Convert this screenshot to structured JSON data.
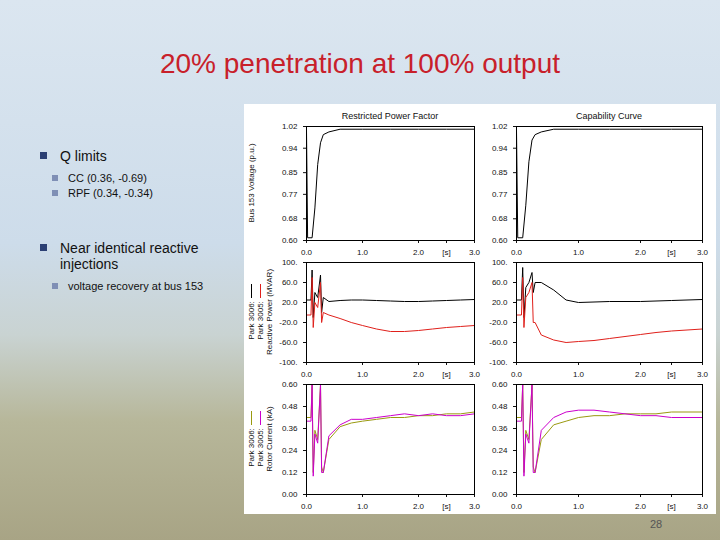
{
  "slide": {
    "title": "20% penetration at 100% output",
    "bullets": [
      {
        "text": "Q limits",
        "sub": [
          "CC (0.36, -0.69)",
          "RPF (0.34, -0.34)"
        ]
      },
      {
        "text": "Near identical reactive injections",
        "sub": [
          "voltage recovery at bus 153"
        ]
      }
    ],
    "page_number": "28"
  },
  "chart_data": [
    {
      "type": "line",
      "title": "Restricted Power Factor",
      "ylabel": "Bus 153 Voltage (p.u.)",
      "grid": false,
      "x": [
        0,
        0.02,
        0.1,
        0.15,
        0.2,
        0.25,
        0.3,
        0.4,
        0.6,
        1,
        1.5,
        2,
        2.5,
        3
      ],
      "series": [
        {
          "color": "#000000",
          "values": [
            1.01,
            0.61,
            0.61,
            0.72,
            0.88,
            0.96,
            0.99,
            1.0,
            1.01,
            1.01,
            1.01,
            1.01,
            1.01,
            1.01
          ]
        }
      ],
      "xlim": [
        0,
        3
      ],
      "xticks": [
        {
          "value": 0,
          "label": "0.0"
        },
        {
          "value": 1,
          "label": "1.0"
        },
        {
          "value": 2,
          "label": "2.0"
        },
        {
          "value": 2.5,
          "label": "[s]"
        },
        {
          "value": 3,
          "label": "3.0"
        }
      ],
      "ylim": [
        0.6,
        1.02
      ],
      "yticks": [
        1.02,
        0.94,
        0.85,
        0.77,
        0.68,
        {
          "value": 0.6,
          "label": "0.60"
        }
      ]
    },
    {
      "type": "line",
      "title": "Capability Curve",
      "grid": false,
      "x": [
        0,
        0.02,
        0.1,
        0.15,
        0.2,
        0.25,
        0.3,
        0.4,
        0.6,
        1,
        1.5,
        2,
        2.5,
        3
      ],
      "series": [
        {
          "color": "#000000",
          "values": [
            1.01,
            0.61,
            0.61,
            0.73,
            0.89,
            0.97,
            0.99,
            1.0,
            1.01,
            1.01,
            1.01,
            1.01,
            1.01,
            1.01
          ]
        }
      ],
      "xlim": [
        0,
        3
      ],
      "xticks": [
        {
          "value": 0,
          "label": "0.0"
        },
        {
          "value": 1,
          "label": "1.0"
        },
        {
          "value": 2,
          "label": "2.0"
        },
        {
          "value": 2.5,
          "label": "[s]"
        },
        {
          "value": 3,
          "label": "3.0"
        }
      ],
      "ylim": [
        0.6,
        1.02
      ],
      "yticks": [
        1.02,
        0.94,
        0.85,
        0.77,
        0.68,
        {
          "value": 0.6,
          "label": "0.60"
        }
      ]
    },
    {
      "type": "line",
      "ylabel": "Reactive Power (MVAR)",
      "grid": false,
      "x": [
        0,
        0.08,
        0.1,
        0.12,
        0.15,
        0.2,
        0.25,
        0.27,
        0.3,
        0.4,
        0.6,
        0.8,
        1.0,
        1.25,
        1.5,
        1.75,
        2.0,
        2.25,
        2.5,
        2.75,
        3.0
      ],
      "series": [
        {
          "name": "Park 3006:",
          "color": "#000000",
          "values": [
            25,
            25,
            85,
            -10,
            40,
            30,
            75,
            0,
            30,
            22,
            24,
            25,
            25,
            24,
            23,
            22,
            22,
            23,
            24,
            25,
            26
          ]
        },
        {
          "name": "Park 3005:",
          "color": "#e0201b",
          "values": [
            -5,
            -5,
            70,
            -30,
            20,
            10,
            60,
            -20,
            0,
            -5,
            -12,
            -20,
            -26,
            -33,
            -38,
            -38,
            -36,
            -33,
            -30,
            -28,
            -26
          ]
        }
      ],
      "xlim": [
        0,
        3
      ],
      "xticks": [
        {
          "value": 0,
          "label": "0.0"
        },
        {
          "value": 1,
          "label": "1.0"
        },
        {
          "value": 2,
          "label": "2.0"
        },
        {
          "value": 2.5,
          "label": "[s]"
        },
        {
          "value": 3,
          "label": "3.0"
        }
      ],
      "ylim": [
        -100,
        100
      ],
      "yticks": [
        {
          "value": 100,
          "label": "100."
        },
        {
          "value": 60,
          "label": "60.0"
        },
        {
          "value": 20,
          "label": "20.0"
        },
        {
          "value": -20,
          "label": "-20.0"
        },
        {
          "value": -60,
          "label": "-60.0"
        },
        {
          "value": -100,
          "label": "-100."
        }
      ]
    },
    {
      "type": "line",
      "grid": false,
      "x": [
        0,
        0.08,
        0.1,
        0.12,
        0.15,
        0.2,
        0.25,
        0.27,
        0.3,
        0.4,
        0.6,
        0.8,
        1.0,
        1.25,
        1.5,
        1.75,
        2.0,
        2.25,
        2.5,
        2.75,
        3.0
      ],
      "series": [
        {
          "color": "#000000",
          "values": [
            25,
            25,
            90,
            -10,
            50,
            60,
            80,
            40,
            60,
            60,
            45,
            25,
            20,
            21,
            22,
            22,
            22,
            23,
            24,
            25,
            26
          ]
        },
        {
          "color": "#e0201b",
          "values": [
            -5,
            -5,
            70,
            -30,
            30,
            40,
            60,
            -20,
            -20,
            -45,
            -55,
            -60,
            -58,
            -56,
            -52,
            -48,
            -44,
            -40,
            -37,
            -35,
            -33
          ]
        }
      ],
      "xlim": [
        0,
        3
      ],
      "xticks": [
        {
          "value": 0,
          "label": "0.0"
        },
        {
          "value": 1,
          "label": "1.0"
        },
        {
          "value": 2,
          "label": "2.0"
        },
        {
          "value": 2.5,
          "label": "[s]"
        },
        {
          "value": 3,
          "label": "3.0"
        }
      ],
      "ylim": [
        -100,
        100
      ],
      "yticks": [
        {
          "value": 100,
          "label": "100."
        },
        {
          "value": 60,
          "label": "60.0"
        },
        {
          "value": 20,
          "label": "20.0"
        },
        {
          "value": -20,
          "label": "-20.0"
        },
        {
          "value": -60,
          "label": "-60.0"
        },
        {
          "value": -100,
          "label": "-100."
        }
      ]
    },
    {
      "type": "line",
      "ylabel": "Rotor Current (kA)",
      "grid": false,
      "x": [
        0,
        0.08,
        0.1,
        0.12,
        0.15,
        0.2,
        0.25,
        0.27,
        0.3,
        0.4,
        0.6,
        0.8,
        1.0,
        1.25,
        1.5,
        1.75,
        2.0,
        2.25,
        2.5,
        2.75,
        3.0
      ],
      "series": [
        {
          "name": "Park 3006:",
          "color": "#9a9a10",
          "values": [
            0.42,
            0.42,
            0.6,
            0.12,
            0.35,
            0.3,
            0.6,
            0.15,
            0.12,
            0.3,
            0.37,
            0.39,
            0.4,
            0.41,
            0.42,
            0.42,
            0.43,
            0.43,
            0.44,
            0.44,
            0.45
          ]
        },
        {
          "name": "Park 3005:",
          "color": "#cc00cc",
          "values": [
            0.4,
            0.4,
            0.6,
            0.1,
            0.33,
            0.28,
            0.6,
            0.12,
            0.12,
            0.32,
            0.38,
            0.41,
            0.41,
            0.42,
            0.43,
            0.44,
            0.43,
            0.44,
            0.43,
            0.43,
            0.44
          ]
        }
      ],
      "xlim": [
        0,
        3
      ],
      "xticks": [
        {
          "value": 0,
          "label": "0.0"
        },
        {
          "value": 1,
          "label": "1.0"
        },
        {
          "value": 2,
          "label": "2.0"
        },
        {
          "value": 2.5,
          "label": "[s]"
        },
        {
          "value": 3,
          "label": "3.0"
        }
      ],
      "ylim": [
        0,
        0.6
      ],
      "yticks": [
        {
          "value": 0.6,
          "label": "0.60"
        },
        0.48,
        0.36,
        0.24,
        0.12,
        {
          "value": 0,
          "label": "0.00"
        }
      ]
    },
    {
      "type": "line",
      "grid": false,
      "x": [
        0,
        0.08,
        0.1,
        0.12,
        0.15,
        0.2,
        0.25,
        0.27,
        0.3,
        0.4,
        0.6,
        0.8,
        1.0,
        1.25,
        1.5,
        1.75,
        2.0,
        2.25,
        2.5,
        2.75,
        3.0
      ],
      "series": [
        {
          "color": "#9a9a10",
          "values": [
            0.42,
            0.42,
            0.6,
            0.12,
            0.35,
            0.3,
            0.6,
            0.15,
            0.12,
            0.3,
            0.38,
            0.4,
            0.42,
            0.43,
            0.43,
            0.44,
            0.44,
            0.44,
            0.45,
            0.45,
            0.45
          ]
        },
        {
          "color": "#cc00cc",
          "values": [
            0.4,
            0.4,
            0.6,
            0.1,
            0.33,
            0.28,
            0.6,
            0.12,
            0.12,
            0.35,
            0.42,
            0.45,
            0.46,
            0.46,
            0.45,
            0.44,
            0.43,
            0.43,
            0.42,
            0.42,
            0.42
          ]
        }
      ],
      "xlim": [
        0,
        3
      ],
      "xticks": [
        {
          "value": 0,
          "label": "0.0"
        },
        {
          "value": 1,
          "label": "1.0"
        },
        {
          "value": 2,
          "label": "2.0"
        },
        {
          "value": 2.5,
          "label": "[s]"
        },
        {
          "value": 3,
          "label": "3.0"
        }
      ],
      "ylim": [
        0,
        0.6
      ],
      "yticks": [
        {
          "value": 0.6,
          "label": "0.60"
        },
        0.48,
        0.36,
        0.24,
        0.12,
        {
          "value": 0,
          "label": "0.00"
        }
      ]
    }
  ]
}
